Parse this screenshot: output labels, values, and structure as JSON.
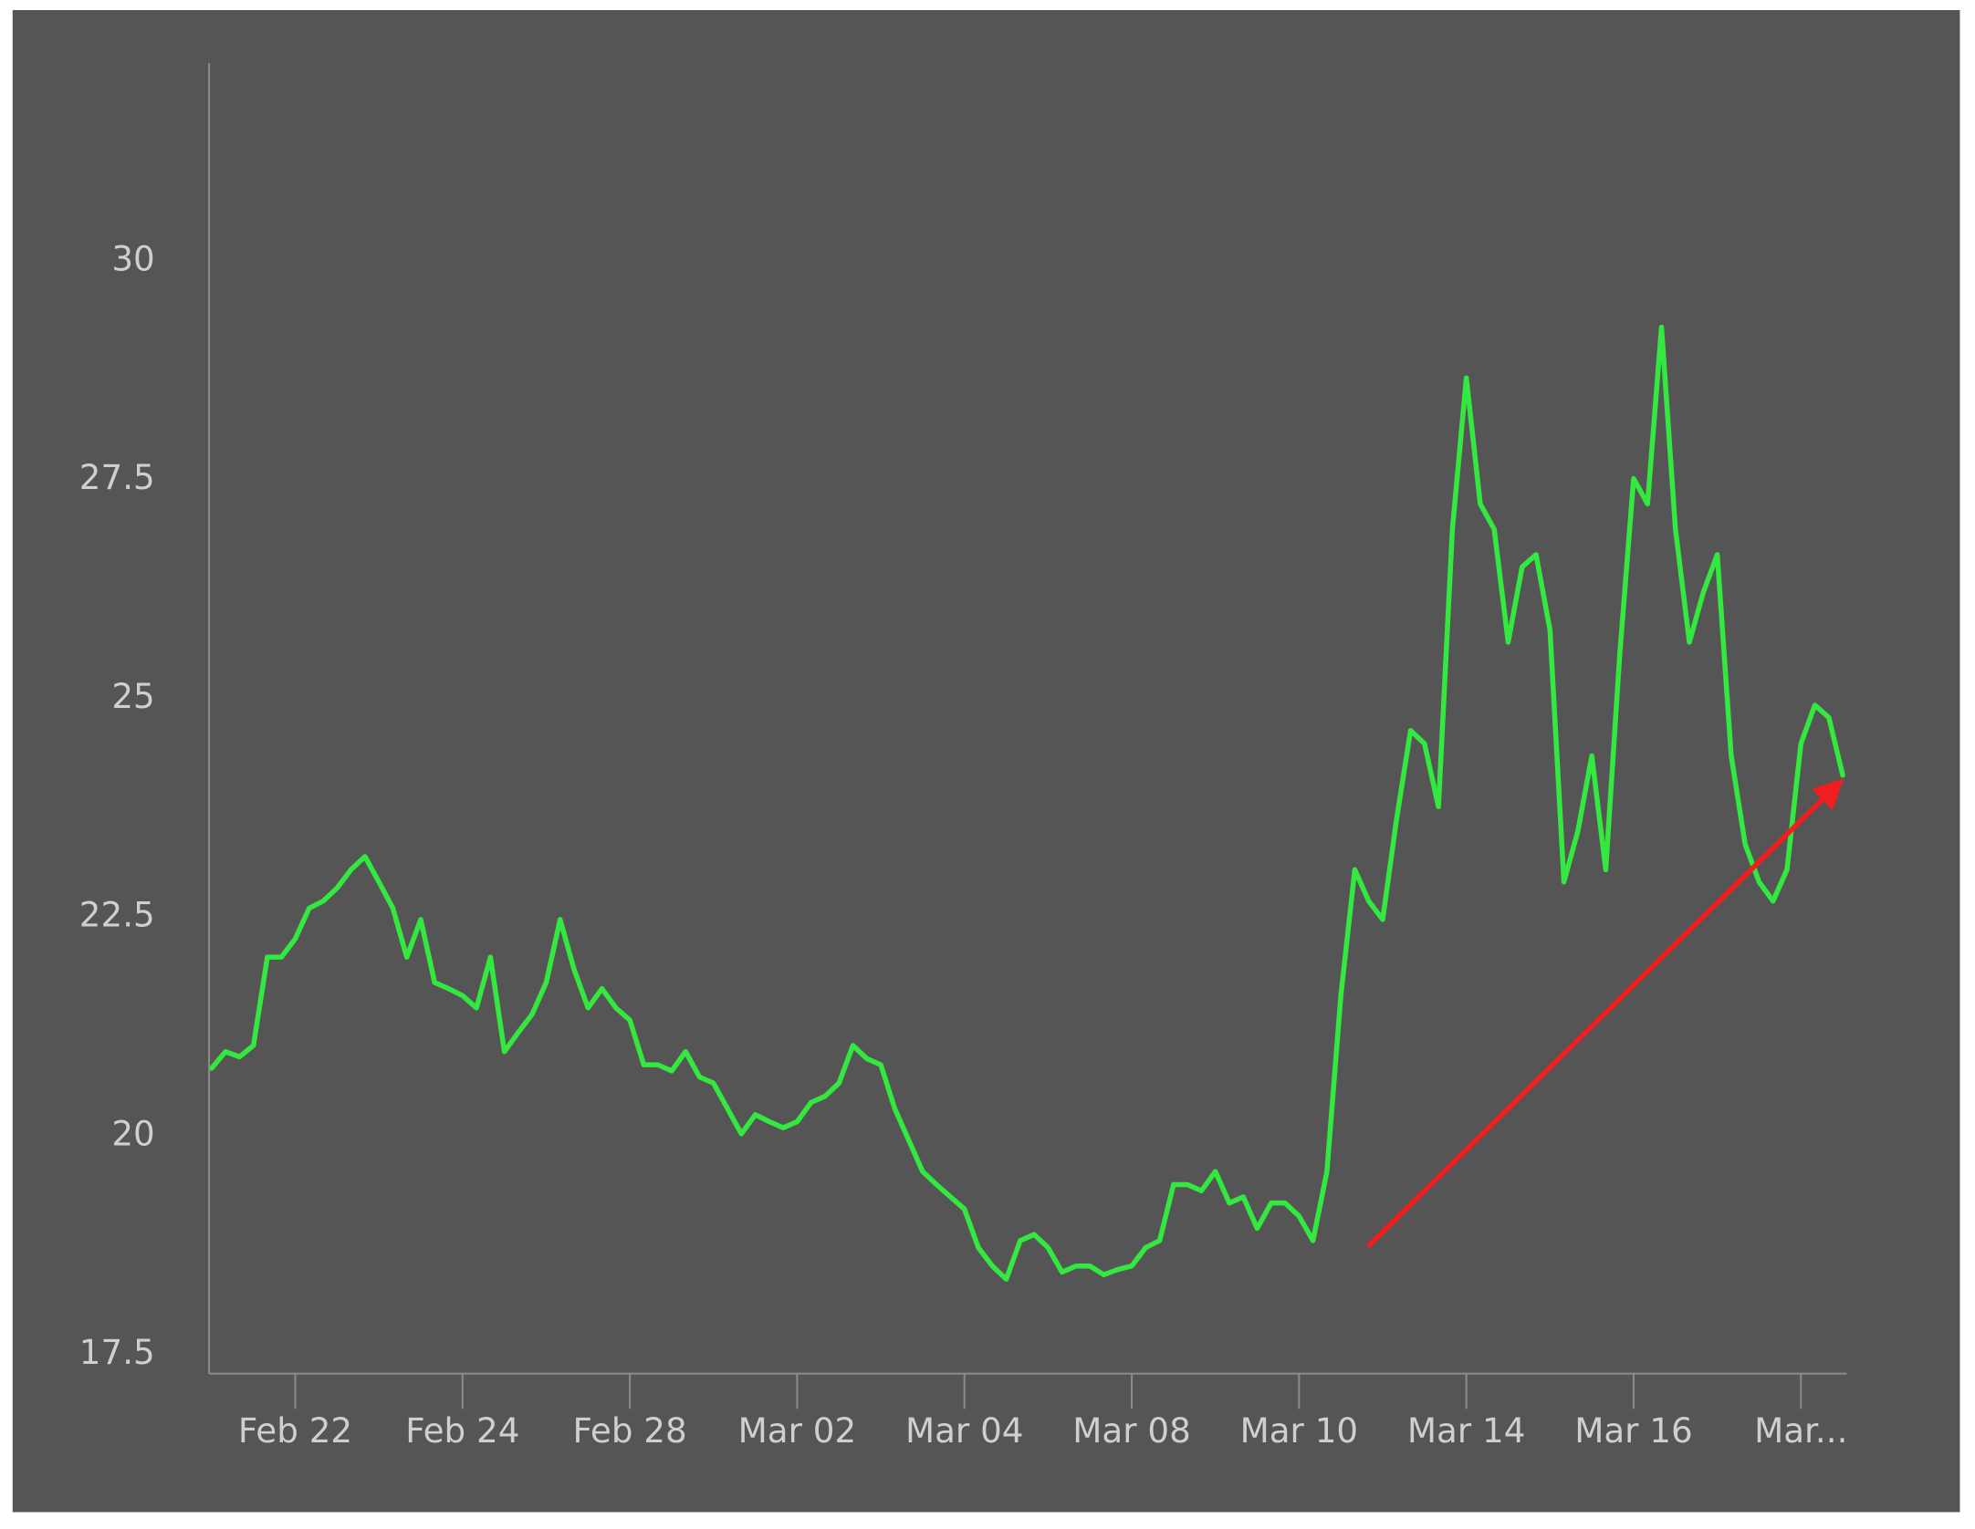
{
  "chart_data": {
    "type": "line",
    "color": "#33e83f",
    "grid": false,
    "ylim": [
      17.28,
      32.26
    ],
    "yticks": [
      17.5,
      20,
      22.5,
      25,
      27.5,
      30
    ],
    "categories": [
      null,
      null,
      null,
      null,
      null,
      null,
      "Feb 22",
      null,
      null,
      null,
      null,
      null,
      null,
      null,
      null,
      null,
      null,
      null,
      "Feb 24",
      null,
      null,
      null,
      null,
      null,
      null,
      null,
      null,
      null,
      null,
      null,
      "Feb 28",
      null,
      null,
      null,
      null,
      null,
      null,
      null,
      null,
      null,
      null,
      null,
      "Mar 02",
      null,
      null,
      null,
      null,
      null,
      null,
      null,
      null,
      null,
      null,
      null,
      "Mar 04",
      null,
      null,
      null,
      null,
      null,
      null,
      null,
      null,
      null,
      null,
      null,
      "Mar 08",
      null,
      null,
      null,
      null,
      null,
      null,
      null,
      null,
      null,
      null,
      null,
      "Mar 10",
      null,
      null,
      null,
      null,
      null,
      null,
      null,
      null,
      null,
      null,
      null,
      "Mar 14",
      null,
      null,
      null,
      null,
      null,
      null,
      null,
      null,
      null,
      null,
      null,
      "Mar 16",
      null,
      null,
      null,
      null,
      null,
      null,
      null,
      null,
      null,
      null,
      null,
      "Mar...",
      null,
      null,
      null
    ],
    "values": [
      20.77,
      20.96,
      20.9,
      21.03,
      22.04,
      22.04,
      22.25,
      22.6,
      22.68,
      22.83,
      23.04,
      23.19,
      22.9,
      22.6,
      22.04,
      22.47,
      21.75,
      21.68,
      21.6,
      21.46,
      22.04,
      20.96,
      21.18,
      21.39,
      21.75,
      22.47,
      21.9,
      21.46,
      21.68,
      21.46,
      21.32,
      20.81,
      20.81,
      20.74,
      20.96,
      20.67,
      20.6,
      20.31,
      20.02,
      20.24,
      20.16,
      20.09,
      20.16,
      20.38,
      20.45,
      20.6,
      21.03,
      20.88,
      20.81,
      20.31,
      19.95,
      19.59,
      19.44,
      19.3,
      19.16,
      18.72,
      18.51,
      18.36,
      18.8,
      18.87,
      18.72,
      18.44,
      18.51,
      18.51,
      18.41,
      18.47,
      18.51,
      18.72,
      18.8,
      19.44,
      19.44,
      19.37,
      19.59,
      19.23,
      19.3,
      18.94,
      19.23,
      19.23,
      19.08,
      18.8,
      19.59,
      21.6,
      23.04,
      22.68,
      22.47,
      23.62,
      24.63,
      24.48,
      23.76,
      26.93,
      28.66,
      27.22,
      26.93,
      25.64,
      26.5,
      26.64,
      25.78,
      22.9,
      23.48,
      24.34,
      23.04,
      25.49,
      27.51,
      27.22,
      29.24,
      26.93,
      25.64,
      26.21,
      26.64,
      24.34,
      23.33,
      22.9,
      22.68,
      23.04,
      24.48,
      24.92,
      24.78,
      24.12
    ]
  }
}
